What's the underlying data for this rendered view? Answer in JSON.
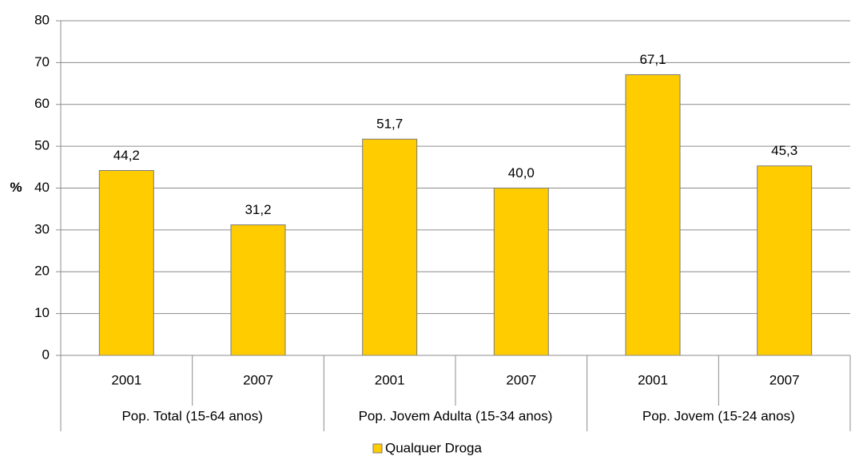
{
  "chart_data": {
    "type": "bar",
    "ylabel": "%",
    "ylim": [
      0,
      80
    ],
    "yticks": [
      0,
      10,
      20,
      30,
      40,
      50,
      60,
      70,
      80
    ],
    "groups": [
      {
        "label": "Pop. Total (15-64 anos)",
        "categories": [
          "2001",
          "2007"
        ],
        "values": [
          44.2,
          31.2
        ],
        "value_labels": [
          "44,2",
          "31,2"
        ]
      },
      {
        "label": "Pop. Jovem Adulta (15-34 anos)",
        "categories": [
          "2001",
          "2007"
        ],
        "values": [
          51.7,
          40.0
        ],
        "value_labels": [
          "51,7",
          "40,0"
        ]
      },
      {
        "label": "Pop. Jovem (15-24 anos)",
        "categories": [
          "2001",
          "2007"
        ],
        "values": [
          67.1,
          45.3
        ],
        "value_labels": [
          "67,1",
          "45,3"
        ]
      }
    ],
    "series": [
      {
        "name": "Qualquer Droga",
        "color": "#FFCC00"
      }
    ],
    "grid": true,
    "legend": "bottom"
  }
}
